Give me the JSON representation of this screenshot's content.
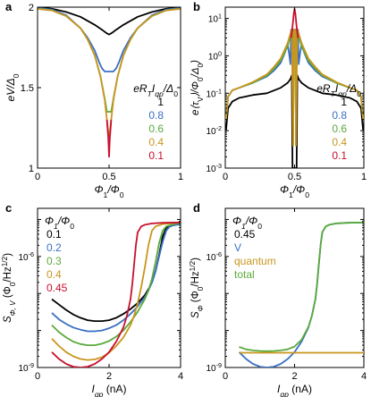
{
  "chart_data": [
    {
      "panel": "a",
      "type": "line",
      "xlabel_main": "Φ",
      "xlabel_sub": "1",
      "xlabel_rest": "/Φ",
      "xlabel_sub2": "0",
      "ylabel": "eV/Δ",
      "ylabel_sub": "0",
      "xlim": [
        0,
        1
      ],
      "ylim": [
        1,
        2
      ],
      "xticks": [
        "0",
        "0.5",
        "1"
      ],
      "yticks": [
        "1",
        "1.5",
        "2"
      ],
      "legend_title": "eR",
      "legend_title_rest": "I",
      "legend_title_sub2": "qp",
      "legend_title_end": "/Δ",
      "legend_title_sub3": "0",
      "legend_title_sub": "T",
      "legend_placement": "right",
      "series": [
        {
          "name": "1",
          "color": "#000000",
          "x": [
            0,
            0.1,
            0.2,
            0.3,
            0.4,
            0.45,
            0.48,
            0.5,
            0.52,
            0.55,
            0.6,
            0.7,
            0.8,
            0.9,
            1
          ],
          "y": [
            2.0,
            1.99,
            1.97,
            1.94,
            1.89,
            1.86,
            1.84,
            1.83,
            1.84,
            1.86,
            1.89,
            1.94,
            1.97,
            1.99,
            2.0
          ]
        },
        {
          "name": "0.8",
          "color": "#3a6fc4",
          "x": [
            0,
            0.1,
            0.2,
            0.3,
            0.35,
            0.4,
            0.43,
            0.45,
            0.47,
            0.48,
            0.5,
            0.52,
            0.53,
            0.55,
            0.57,
            0.6,
            0.65,
            0.7,
            0.8,
            0.9,
            1
          ],
          "y": [
            1.995,
            1.985,
            1.95,
            1.87,
            1.81,
            1.73,
            1.66,
            1.62,
            1.6,
            1.6,
            1.6,
            1.6,
            1.6,
            1.62,
            1.66,
            1.73,
            1.81,
            1.87,
            1.95,
            1.985,
            1.995
          ]
        },
        {
          "name": "0.6",
          "color": "#5aaa3c",
          "x": [
            0,
            0.1,
            0.2,
            0.3,
            0.35,
            0.4,
            0.44,
            0.47,
            0.485,
            0.49,
            0.5,
            0.51,
            0.515,
            0.53,
            0.56,
            0.6,
            0.65,
            0.7,
            0.8,
            0.9,
            1
          ],
          "y": [
            1.99,
            1.98,
            1.945,
            1.87,
            1.8,
            1.7,
            1.57,
            1.43,
            1.35,
            1.35,
            1.35,
            1.35,
            1.35,
            1.43,
            1.57,
            1.7,
            1.8,
            1.87,
            1.945,
            1.98,
            1.99
          ]
        },
        {
          "name": "0.4",
          "color": "#c8961e",
          "x": [
            0,
            0.1,
            0.2,
            0.3,
            0.35,
            0.4,
            0.44,
            0.47,
            0.485,
            0.495,
            0.5,
            0.505,
            0.515,
            0.53,
            0.56,
            0.6,
            0.65,
            0.7,
            0.8,
            0.9,
            1
          ],
          "y": [
            1.99,
            1.98,
            1.945,
            1.87,
            1.8,
            1.7,
            1.57,
            1.42,
            1.3,
            1.22,
            1.2,
            1.22,
            1.3,
            1.42,
            1.57,
            1.7,
            1.8,
            1.87,
            1.945,
            1.98,
            1.99
          ]
        },
        {
          "name": "0.1",
          "color": "#c8102e",
          "x": [
            0.485,
            0.495,
            0.5,
            0.505,
            0.515
          ],
          "y": [
            1.3,
            1.18,
            1.07,
            1.18,
            1.3
          ]
        }
      ]
    },
    {
      "panel": "b",
      "type": "line",
      "xlabel_main": "Φ",
      "xlabel_sub": "1",
      "xlabel_rest": "/Φ",
      "xlabel_sub2": "0",
      "ylabel": "e⟨τ",
      "ylabel_sub": "V",
      "ylabel_rest": "⟩/Φ",
      "ylabel_sub2": "0",
      "ylabel_end": "/Δ",
      "ylabel_sub3": "0",
      "ylabel_close": ")",
      "xlim": [
        0,
        1
      ],
      "ylim": [
        0.001,
        20
      ],
      "log_y": true,
      "xticks": [
        "0",
        "0.5",
        "1"
      ],
      "yticks": [
        "10",
        "10",
        "10",
        "10",
        "10"
      ],
      "ytick_exps": [
        "-3",
        "-2",
        "-1",
        "0",
        "1"
      ],
      "legend_title": "eR",
      "legend_title_sub": "T",
      "legend_title_rest": "I",
      "legend_title_sub2": "qp",
      "legend_title_end": "/Δ",
      "legend_title_sub3": "0",
      "legend_placement": "right",
      "series": [
        {
          "name": "1",
          "color": "#000000",
          "x": [
            0.005,
            0.02,
            0.05,
            0.1,
            0.2,
            0.3,
            0.4,
            0.45,
            0.47,
            0.48,
            0.485,
            0.495,
            0.5,
            0.505,
            0.515,
            0.52,
            0.53,
            0.55,
            0.6,
            0.7,
            0.8,
            0.9,
            0.95,
            0.98,
            0.995
          ],
          "y": [
            0.01,
            0.04,
            0.06,
            0.075,
            0.09,
            0.1,
            0.14,
            0.19,
            0.24,
            0.3,
            0.001,
            0.001,
            0.001,
            0.001,
            0.001,
            0.3,
            0.24,
            0.19,
            0.14,
            0.1,
            0.09,
            0.075,
            0.06,
            0.04,
            0.01
          ]
        },
        {
          "name": "0.8",
          "color": "#3a6fc4",
          "x": [
            0.005,
            0.02,
            0.05,
            0.1,
            0.2,
            0.3,
            0.35,
            0.4,
            0.43,
            0.45,
            0.46,
            0.47,
            0.475,
            0.5,
            0.525,
            0.53,
            0.54,
            0.55,
            0.57,
            0.6,
            0.65,
            0.7,
            0.8,
            0.9,
            0.95,
            0.98,
            0.995
          ],
          "y": [
            0.02,
            0.08,
            0.12,
            0.14,
            0.19,
            0.28,
            0.4,
            0.65,
            1.2,
            2.0,
            1.2,
            0.6,
            5.0,
            5.0,
            5.0,
            0.6,
            1.2,
            2.0,
            1.2,
            0.65,
            0.4,
            0.28,
            0.19,
            0.14,
            0.12,
            0.08,
            0.02
          ]
        },
        {
          "name": "0.6",
          "color": "#5aaa3c",
          "x": [
            0.005,
            0.02,
            0.05,
            0.1,
            0.2,
            0.3,
            0.35,
            0.4,
            0.45,
            0.47,
            0.485,
            0.49,
            0.495,
            0.5,
            0.505,
            0.51,
            0.515,
            0.53,
            0.55,
            0.6,
            0.65,
            0.7,
            0.8,
            0.9,
            0.95,
            0.98,
            0.995
          ],
          "y": [
            0.02,
            0.08,
            0.12,
            0.14,
            0.19,
            0.3,
            0.45,
            0.75,
            1.8,
            3.5,
            5.0,
            0.004,
            5.0,
            5.0,
            5.0,
            0.004,
            5.0,
            3.5,
            1.8,
            0.75,
            0.45,
            0.3,
            0.19,
            0.14,
            0.12,
            0.08,
            0.02
          ]
        },
        {
          "name": "0.4",
          "color": "#c8961e",
          "x": [
            0.005,
            0.02,
            0.05,
            0.1,
            0.2,
            0.3,
            0.35,
            0.4,
            0.45,
            0.47,
            0.48,
            0.49,
            0.495,
            0.5,
            0.505,
            0.51,
            0.52,
            0.53,
            0.55,
            0.6,
            0.65,
            0.7,
            0.8,
            0.9,
            0.95,
            0.98,
            0.995
          ],
          "y": [
            0.02,
            0.08,
            0.12,
            0.14,
            0.2,
            0.32,
            0.5,
            0.85,
            2.2,
            4.0,
            5.0,
            0.004,
            5.0,
            5.0,
            5.0,
            0.004,
            5.0,
            4.0,
            2.2,
            0.85,
            0.5,
            0.32,
            0.2,
            0.14,
            0.12,
            0.08,
            0.02
          ]
        },
        {
          "name": "0.1",
          "color": "#c8102e",
          "x": [
            0.475,
            0.485,
            0.49,
            0.495,
            0.5,
            0.505,
            0.51,
            0.515,
            0.525
          ],
          "y": [
            3.0,
            6.0,
            9.0,
            14.0,
            18.0,
            14.0,
            9.0,
            6.0,
            3.0
          ]
        }
      ]
    },
    {
      "panel": "c",
      "type": "line",
      "xlabel": "I",
      "xlabel_sub": "qp",
      "xlabel_rest": " (nA)",
      "ylabel": "S",
      "ylabel_sub": "Φ, V",
      "ylabel_rest": " (Φ",
      "ylabel_sub2": "0",
      "ylabel_end": "/Hz",
      "ylabel_sup": "1/2",
      "ylabel_close": ")",
      "xlim": [
        0,
        4
      ],
      "ylim": [
        1e-09,
        2e-05
      ],
      "log_y": true,
      "xticks": [
        "0",
        "2",
        "4"
      ],
      "yticks": [
        "10",
        "10"
      ],
      "ytick_exps": [
        "-9",
        "-6"
      ],
      "legend_title": "Φ",
      "legend_title_sub": "1",
      "legend_title_rest": "/Φ",
      "legend_title_sub2": "0",
      "legend_placement": "top-left",
      "series": [
        {
          "name": "0.1",
          "color": "#000000",
          "x": [
            0.4,
            0.6,
            0.8,
            1.0,
            1.2,
            1.4,
            1.6,
            1.8,
            2.0,
            2.2,
            2.4,
            2.6,
            2.8,
            3.0,
            3.1,
            3.2,
            3.3,
            3.4,
            3.5,
            3.6,
            3.8,
            4.0
          ],
          "y": [
            7e-08,
            5e-08,
            3.6e-08,
            2.7e-08,
            2.2e-08,
            1.9e-08,
            1.8e-08,
            1.8e-08,
            1.9e-08,
            2.2e-08,
            2.8e-08,
            3.8e-08,
            5.5e-08,
            9e-08,
            1.3e-07,
            2e-07,
            4e-07,
            1.1e-06,
            3.5e-06,
            6e-06,
            7e-06,
            7.5e-06
          ]
        },
        {
          "name": "0.2",
          "color": "#3a6fc4",
          "x": [
            0.4,
            0.6,
            0.8,
            1.0,
            1.2,
            1.4,
            1.6,
            1.8,
            2.0,
            2.2,
            2.4,
            2.6,
            2.8,
            3.0,
            3.1,
            3.2,
            3.3,
            3.4,
            3.5,
            3.6,
            3.7,
            3.8,
            4.0
          ],
          "y": [
            3e-08,
            2e-08,
            1.5e-08,
            1.2e-08,
            1.05e-08,
            9.5e-09,
            9.5e-09,
            1e-08,
            1.15e-08,
            1.4e-08,
            1.9e-08,
            2.8e-08,
            4.5e-08,
            8e-08,
            1.2e-07,
            2e-07,
            4e-07,
            1e-06,
            2.5e-06,
            5e-06,
            6.5e-06,
            7e-06,
            7.5e-06
          ]
        },
        {
          "name": "0.3",
          "color": "#5aaa3c",
          "x": [
            0.4,
            0.6,
            0.8,
            1.0,
            1.2,
            1.4,
            1.6,
            1.8,
            2.0,
            2.2,
            2.4,
            2.6,
            2.8,
            3.0,
            3.1,
            3.2,
            3.3,
            3.4,
            3.5,
            3.6,
            3.8,
            4.0
          ],
          "y": [
            1.4e-08,
            9e-09,
            6.5e-09,
            5e-09,
            4.3e-09,
            4e-09,
            4e-09,
            4.4e-09,
            5.2e-09,
            6.8e-09,
            1e-08,
            1.7e-08,
            3.2e-08,
            7e-08,
            1.2e-07,
            2.5e-07,
            7e-07,
            2.3e-06,
            5e-06,
            6.5e-06,
            7.5e-06,
            8e-06
          ]
        },
        {
          "name": "0.4",
          "color": "#c8961e",
          "x": [
            0.4,
            0.6,
            0.8,
            1.0,
            1.2,
            1.4,
            1.6,
            1.8,
            2.0,
            2.2,
            2.4,
            2.6,
            2.7,
            2.8,
            2.9,
            3.0,
            3.1,
            3.2,
            3.3,
            3.5,
            3.8,
            4.0
          ],
          "y": [
            6e-09,
            3.8e-09,
            2.6e-09,
            2e-09,
            1.7e-09,
            1.6e-09,
            1.65e-09,
            1.9e-09,
            2.5e-09,
            3.8e-09,
            6.5e-09,
            1.4e-08,
            2.5e-08,
            5.5e-08,
            1.5e-07,
            5e-07,
            2e-06,
            5e-06,
            6.5e-06,
            7.5e-06,
            8e-06,
            8.2e-06
          ]
        },
        {
          "name": "0.45",
          "color": "#c8102e",
          "x": [
            0.4,
            0.6,
            0.8,
            1.0,
            1.2,
            1.4,
            1.6,
            1.8,
            2.0,
            2.2,
            2.4,
            2.5,
            2.6,
            2.65,
            2.7,
            2.75,
            2.8,
            2.9,
            3.0,
            3.2,
            3.5,
            4.0
          ],
          "y": [
            2.6e-09,
            1.7e-09,
            1.25e-09,
            1.05e-09,
            1e-09,
            1.05e-09,
            1.25e-09,
            1.7e-09,
            2.6e-09,
            5e-09,
            1.2e-08,
            2.5e-08,
            7e-08,
            1.8e-07,
            6e-07,
            2e-06,
            4.5e-06,
            6.5e-06,
            7.2e-06,
            7.8e-06,
            8.1e-06,
            8.3e-06
          ]
        }
      ]
    },
    {
      "panel": "d",
      "type": "line",
      "xlabel": "I",
      "xlabel_sub": "qp",
      "xlabel_rest": " (nA)",
      "ylabel": "S",
      "ylabel_sub": "Φ",
      "ylabel_rest": " (Φ",
      "ylabel_sub2": "0",
      "ylabel_end": "/Hz",
      "ylabel_sup": "1/2",
      "ylabel_close": ")",
      "xlim": [
        0,
        4
      ],
      "ylim": [
        1e-09,
        2e-05
      ],
      "log_y": true,
      "xticks": [
        "0",
        "2",
        "4"
      ],
      "yticks": [
        "10",
        "10"
      ],
      "ytick_exps": [
        "-9",
        "-6"
      ],
      "legend_title": "Φ",
      "legend_title_sub": "1",
      "legend_title_rest": "/Φ",
      "legend_title_sub2": "0",
      "legend_value": "0.45",
      "legend_placement": "top-left",
      "series": [
        {
          "name": "V",
          "color": "#3a6fc4",
          "x": [
            0.4,
            0.6,
            0.8,
            1.0,
            1.2,
            1.4,
            1.6,
            1.8,
            2.0,
            2.2,
            2.4,
            2.5,
            2.6,
            2.65,
            2.7,
            2.75,
            2.8,
            2.9,
            3.0,
            3.2,
            3.5,
            4.0
          ],
          "y": [
            2.6e-09,
            1.7e-09,
            1.25e-09,
            1.05e-09,
            1e-09,
            1.05e-09,
            1.25e-09,
            1.7e-09,
            2.6e-09,
            5e-09,
            1.2e-08,
            2.5e-08,
            7e-08,
            1.8e-07,
            6e-07,
            2e-06,
            4.5e-06,
            6.5e-06,
            7.2e-06,
            7.8e-06,
            8.1e-06,
            8.3e-06
          ]
        },
        {
          "name": "quantum",
          "color": "#c8961e",
          "x": [
            0.4,
            1.0,
            2.0,
            3.0,
            4.0
          ],
          "y": [
            2.5e-09,
            2.5e-09,
            2.5e-09,
            2.5e-09,
            2.5e-09
          ]
        },
        {
          "name": "total",
          "color": "#5aaa3c",
          "x": [
            0.4,
            0.6,
            0.8,
            1.0,
            1.2,
            1.4,
            1.6,
            1.8,
            2.0,
            2.2,
            2.4,
            2.5,
            2.6,
            2.65,
            2.7,
            2.75,
            2.8,
            2.9,
            3.0,
            3.2,
            3.5,
            4.0
          ],
          "y": [
            3.6e-09,
            3.1e-09,
            2.9e-09,
            2.8e-09,
            2.75e-09,
            2.8e-09,
            2.9e-09,
            3.1e-09,
            3.7e-09,
            5.6e-09,
            1.25e-08,
            2.5e-08,
            7e-08,
            1.8e-07,
            6e-07,
            2e-06,
            4.5e-06,
            6.5e-06,
            7.2e-06,
            7.8e-06,
            8.1e-06,
            8.3e-06
          ]
        }
      ]
    }
  ]
}
